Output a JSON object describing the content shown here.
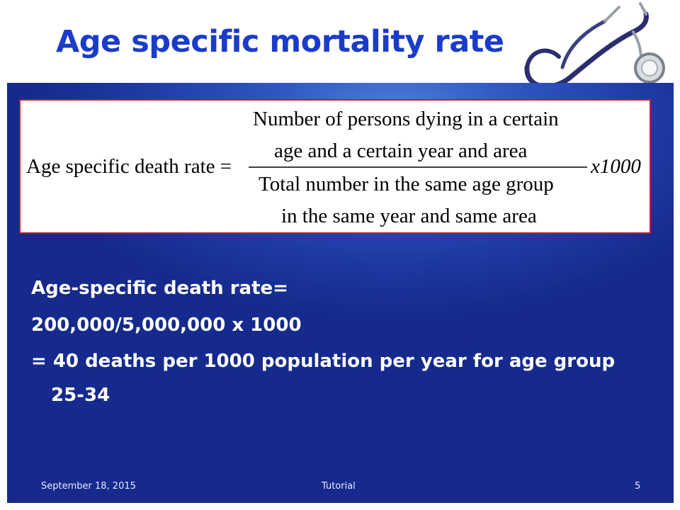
{
  "slide": {
    "title": "Age specific mortality rate",
    "formula": {
      "lhs": "Age specific death rate =",
      "numerator_line1": "Number of persons dying in a certain",
      "numerator_line2": "age and a certain year and area",
      "denominator_line1": "Total number in the same age group",
      "denominator_line2": "in the same year and same area",
      "multiplier": "x1000"
    },
    "body_lines": [
      "Age-specific death rate=",
      "200,000/5,000,000 x 1000",
      "= 40 deaths per 1000 population per year for age group",
      "25-34"
    ],
    "footer": {
      "date": "September 18, 2015",
      "center": "Tutorial",
      "page": "5"
    }
  },
  "colors": {
    "title": "#1a3cc8",
    "panel": "#1e3aa5",
    "formula_border": "#b0253a",
    "body_text": "#ffffff"
  },
  "icons": [
    "stethoscope-icon"
  ]
}
